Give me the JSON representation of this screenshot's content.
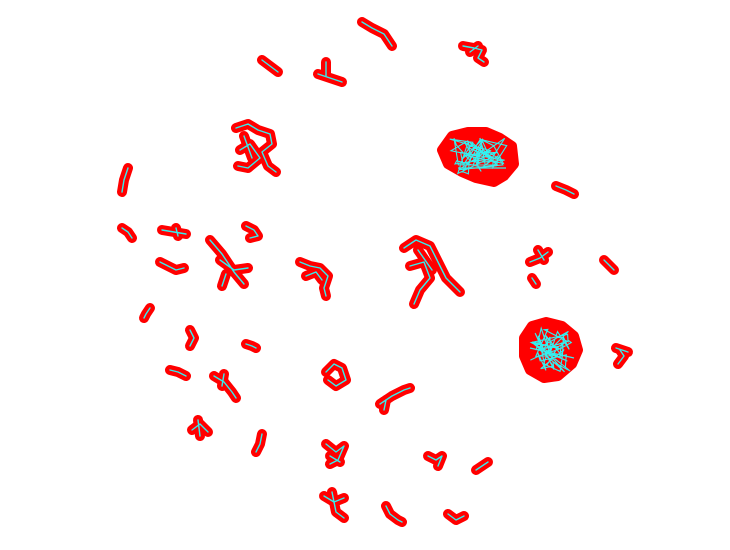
{
  "diagram": {
    "kind": "network-graph-clusters",
    "background_color": "#ffffff",
    "halo_color": "#ff0000",
    "edge_color": "#33f0f0",
    "cluster_count": 40,
    "labels_shown": false
  }
}
